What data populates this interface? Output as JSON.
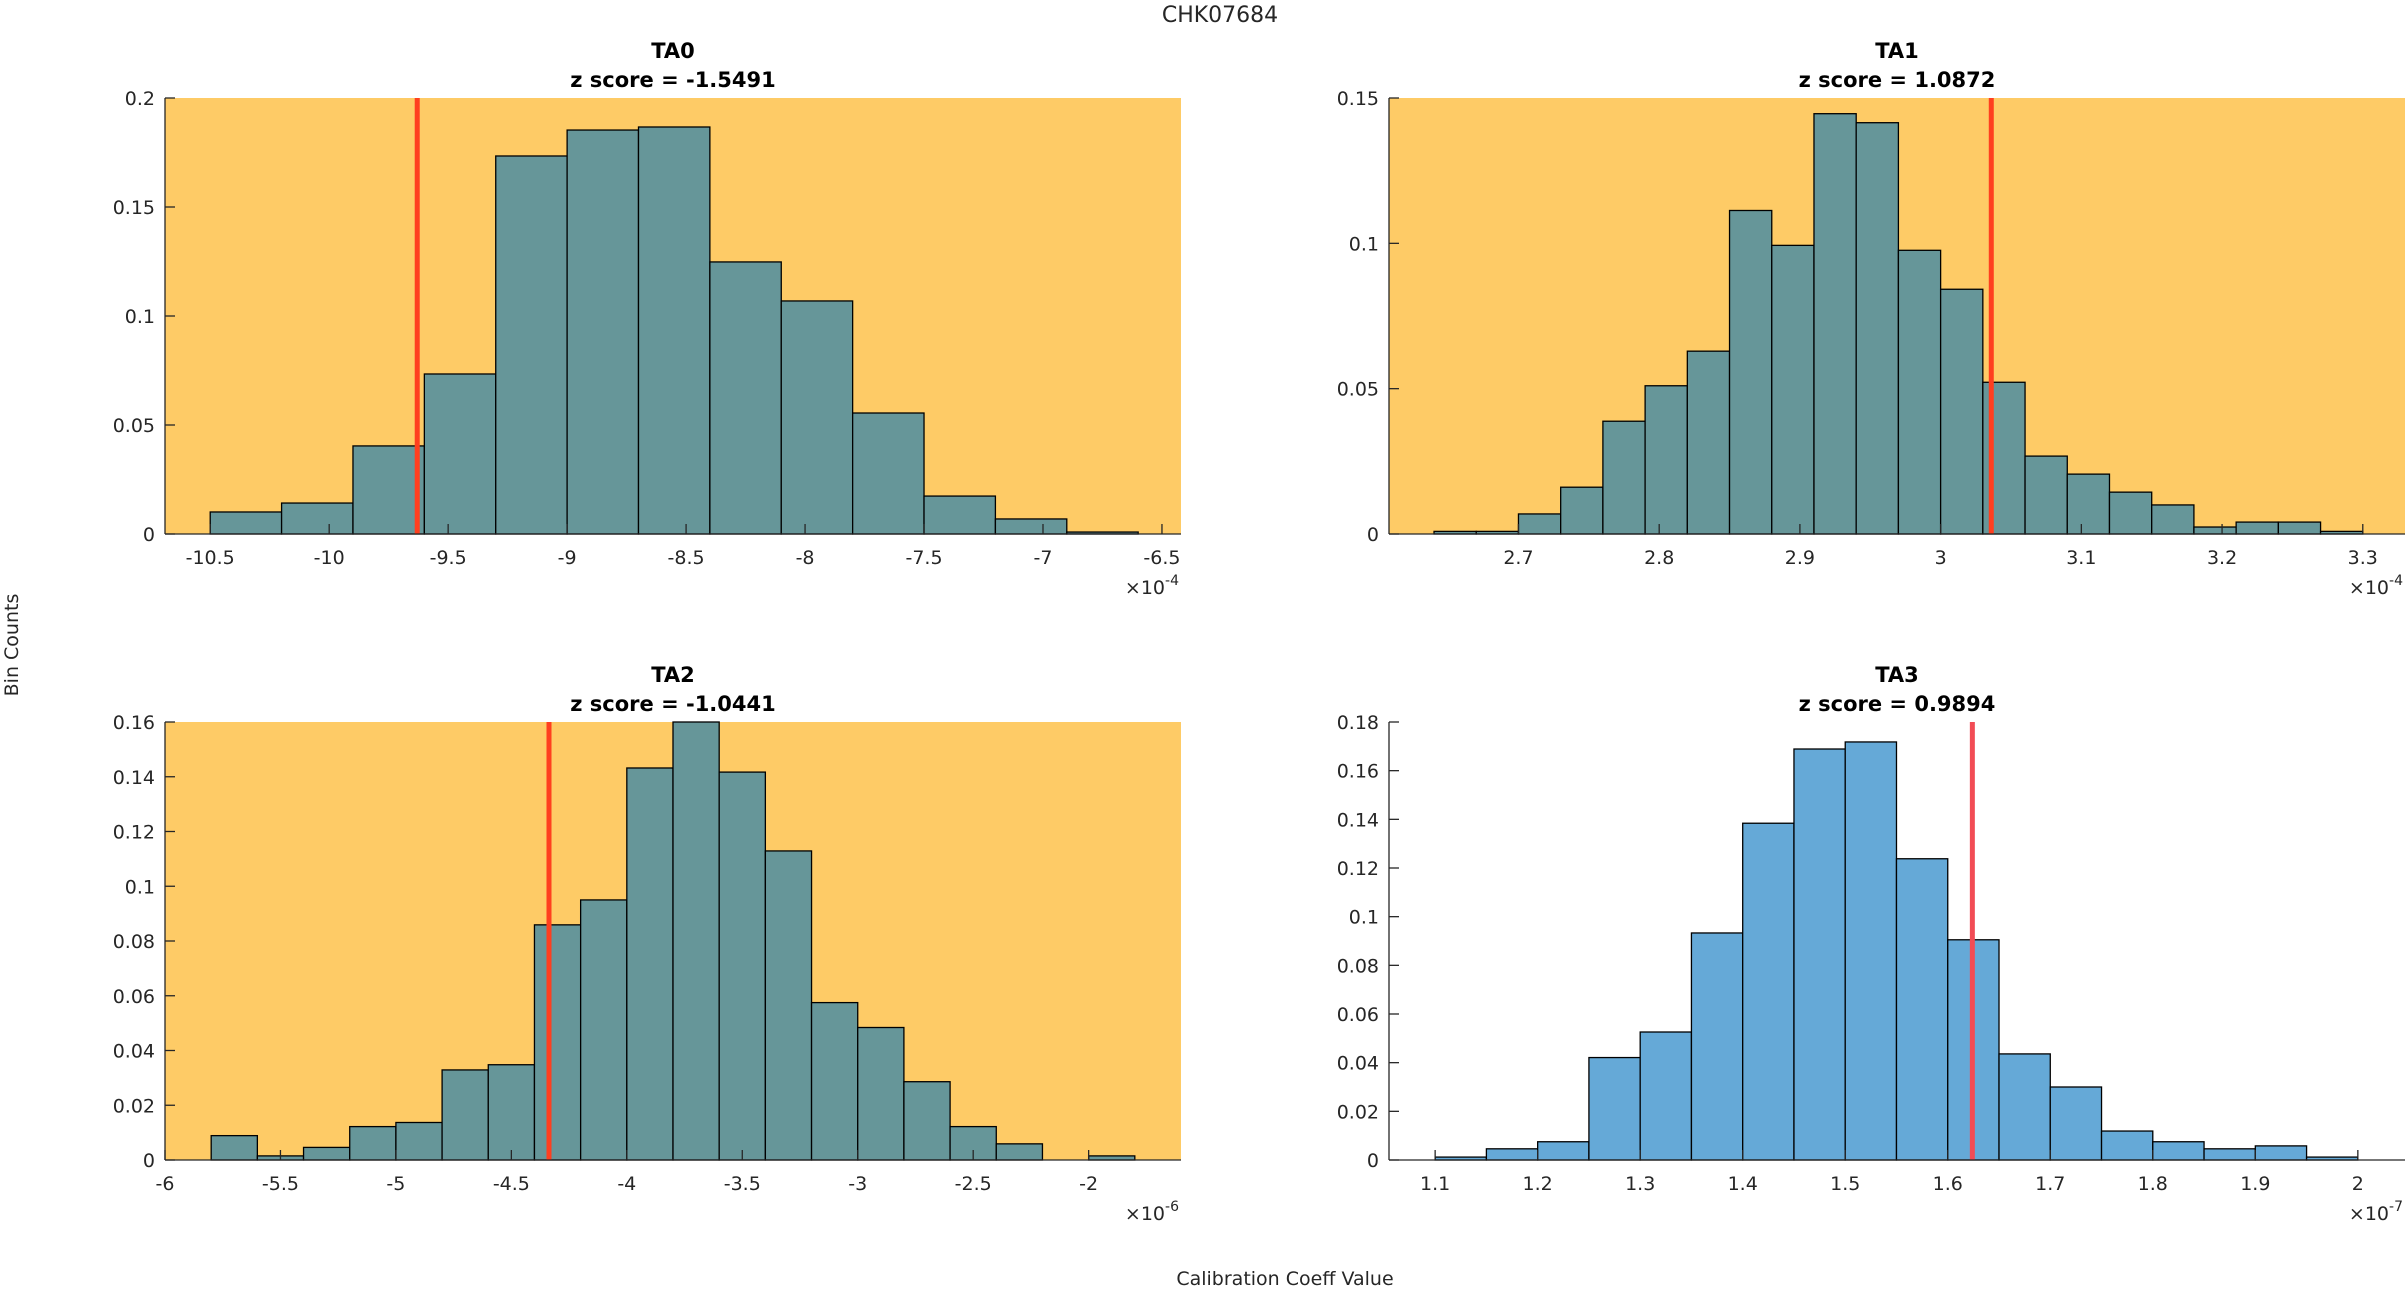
{
  "figure": {
    "suptitle": "CHK07684",
    "ylabel": "Bin Counts",
    "xlabel": "Calibration Coeff Value"
  },
  "colors": {
    "highlight_background": "#FECB66",
    "normal_background": "#FFFFFF",
    "bar_fill_highlight": "#669699",
    "bar_fill_normal": "#65A9D7",
    "bar_edge": "#000000",
    "marker_line_highlight": "#FF3F1F",
    "marker_line_normal": "#F24C55"
  },
  "chart_data": [
    {
      "type": "bar",
      "subtype": "histogram",
      "title": "TA0",
      "subtitle": "z score = -1.5491",
      "highlighted": true,
      "xlabel": "",
      "ylabel": "",
      "x_exponent_label": "×10",
      "x_exponent": "-4",
      "xlim": [
        -10.69,
        -6.42
      ],
      "ylim": [
        0,
        0.2
      ],
      "xticks": [
        -10.5,
        -10,
        -9.5,
        -9,
        -8.5,
        -8,
        -7.5,
        -7,
        -6.5
      ],
      "xtick_labels": [
        "-10.5",
        "-10",
        "-9.5",
        "-9",
        "-8.5",
        "-8",
        "-7.5",
        "-7",
        "-6.5"
      ],
      "yticks": [
        0,
        0.05,
        0.1,
        0.15,
        0.2
      ],
      "ytick_labels": [
        "0",
        "0.05",
        "0.1",
        "0.15",
        "0.2"
      ],
      "bin_start": -10.5,
      "bin_width": 0.3,
      "values": [
        0.0101,
        0.0142,
        0.0404,
        0.0734,
        0.1734,
        0.1853,
        0.1867,
        0.1248,
        0.1069,
        0.0555,
        0.0174,
        0.0069,
        0.0009
      ],
      "marker_x": -9.63,
      "grid": false
    },
    {
      "type": "bar",
      "subtype": "histogram",
      "title": "TA1",
      "subtitle": "z score = 1.0872",
      "highlighted": true,
      "xlabel": "",
      "ylabel": "",
      "x_exponent_label": "×10",
      "x_exponent": "-4",
      "xlim": [
        2.608,
        3.33
      ],
      "ylim": [
        0,
        0.15
      ],
      "xticks": [
        2.7,
        2.8,
        2.9,
        3.0,
        3.1,
        3.2,
        3.3
      ],
      "xtick_labels": [
        "2.7",
        "2.8",
        "2.9",
        "3",
        "3.1",
        "3.2",
        "3.3"
      ],
      "yticks": [
        0,
        0.05,
        0.1,
        0.15
      ],
      "ytick_labels": [
        "0",
        "0.05",
        "0.1",
        "0.15"
      ],
      "bin_start": 2.64,
      "bin_width": 0.03,
      "values": [
        0.0009,
        0.0009,
        0.0069,
        0.0161,
        0.0388,
        0.051,
        0.0629,
        0.1113,
        0.0993,
        0.1446,
        0.1415,
        0.0976,
        0.0842,
        0.0522,
        0.0268,
        0.0206,
        0.0144,
        0.01,
        0.0024,
        0.0041,
        0.0041,
        0.0009
      ],
      "marker_x": 3.036,
      "grid": false
    },
    {
      "type": "bar",
      "subtype": "histogram",
      "title": "TA2",
      "subtitle": "z score = -1.0441",
      "highlighted": true,
      "xlabel": "",
      "ylabel": "",
      "x_exponent_label": "×10",
      "x_exponent": "-6",
      "xlim": [
        -6.0,
        -1.6
      ],
      "ylim": [
        0,
        0.16
      ],
      "xticks": [
        -6,
        -5.5,
        -5,
        -4.5,
        -4,
        -3.5,
        -3,
        -2.5,
        -2
      ],
      "xtick_labels": [
        "-6",
        "-5.5",
        "-5",
        "-4.5",
        "-4",
        "-3.5",
        "-3",
        "-2.5",
        "-2"
      ],
      "yticks": [
        0,
        0.02,
        0.04,
        0.06,
        0.08,
        0.1,
        0.12,
        0.14,
        0.16
      ],
      "ytick_labels": [
        "0",
        "0.02",
        "0.04",
        "0.06",
        "0.08",
        "0.1",
        "0.12",
        "0.14",
        "0.16"
      ],
      "bin_start": -5.8,
      "bin_width": 0.2,
      "values": [
        0.0089,
        0.0015,
        0.0046,
        0.0122,
        0.0137,
        0.0329,
        0.0348,
        0.0859,
        0.095,
        0.1432,
        0.16,
        0.1417,
        0.1129,
        0.0575,
        0.0484,
        0.0286,
        0.0122,
        0.0059,
        0.0,
        0.0015
      ],
      "marker_x": -4.337,
      "grid": false
    },
    {
      "type": "bar",
      "subtype": "histogram",
      "title": "TA3",
      "subtitle": "z score = 0.9894",
      "highlighted": false,
      "xlabel": "",
      "ylabel": "",
      "x_exponent_label": "×10",
      "x_exponent": "-7",
      "xlim": [
        1.055,
        2.046
      ],
      "ylim": [
        0,
        0.18
      ],
      "xticks": [
        1.1,
        1.2,
        1.3,
        1.4,
        1.5,
        1.6,
        1.7,
        1.8,
        1.9,
        2.0
      ],
      "xtick_labels": [
        "1.1",
        "1.2",
        "1.3",
        "1.4",
        "1.5",
        "1.6",
        "1.7",
        "1.8",
        "1.9",
        "2"
      ],
      "yticks": [
        0,
        0.02,
        0.04,
        0.06,
        0.08,
        0.1,
        0.12,
        0.14,
        0.16,
        0.18
      ],
      "ytick_labels": [
        "0",
        "0.02",
        "0.04",
        "0.06",
        "0.08",
        "0.1",
        "0.12",
        "0.14",
        "0.16",
        "0.18"
      ],
      "bin_start": 1.1,
      "bin_width": 0.05,
      "values": [
        0.0012,
        0.0046,
        0.0075,
        0.0421,
        0.0526,
        0.0933,
        0.1384,
        0.1689,
        0.1718,
        0.1238,
        0.0905,
        0.0436,
        0.03,
        0.0119,
        0.0075,
        0.0046,
        0.0058,
        0.0012
      ],
      "marker_x": 1.624,
      "grid": false
    }
  ]
}
